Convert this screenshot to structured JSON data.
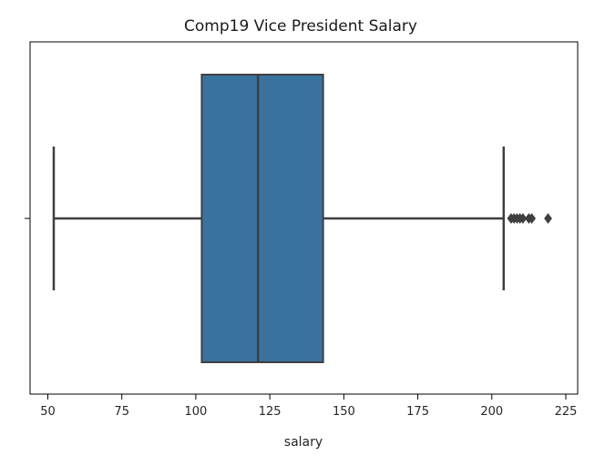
{
  "chart_data": {
    "type": "box",
    "title": "Comp19 Vice President Salary",
    "xlabel": "salary",
    "ylabel": "",
    "xlim": [
      44,
      229
    ],
    "x_ticks": [
      50,
      75,
      100,
      125,
      150,
      175,
      200,
      225
    ],
    "x_tick_labels": [
      "50",
      "75",
      "100",
      "125",
      "150",
      "175",
      "200",
      "225"
    ],
    "orientation": "horizontal",
    "grid": false,
    "box": {
      "whisker_low": 52,
      "q1": 102,
      "median": 121,
      "q3": 143,
      "whisker_high": 204,
      "outliers": [
        206.5,
        207.5,
        208.5,
        209.5,
        210.5,
        212.5,
        213.5,
        219
      ]
    },
    "colors": {
      "box_fill": "#3A729E",
      "line": "#3F3F3F",
      "axes": "#000000"
    }
  }
}
